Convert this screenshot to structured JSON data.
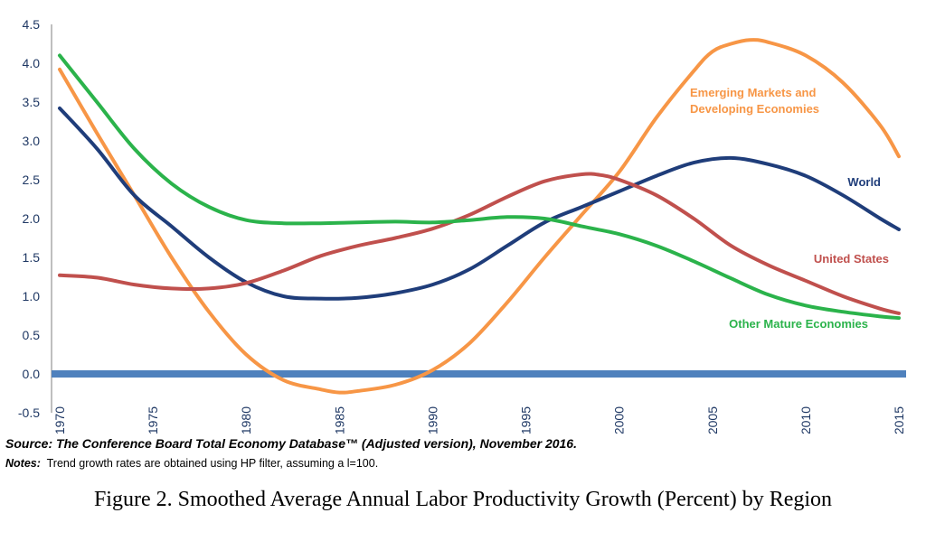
{
  "chart_data": {
    "type": "line",
    "ylim": [
      -0.5,
      4.5
    ],
    "y_ticks": [
      "-0.5",
      "0.0",
      "0.5",
      "1.0",
      "1.5",
      "2.0",
      "2.5",
      "3.0",
      "3.5",
      "4.0",
      "4.5"
    ],
    "x_ticks": [
      "1970",
      "1975",
      "1980",
      "1985",
      "1990",
      "1995",
      "2000",
      "2005",
      "2010",
      "2015"
    ],
    "xlim": [
      1970,
      2015
    ],
    "grid": false,
    "zero_line_color": "#4f81bd",
    "series": [
      {
        "name": "Emerging Markets and Developing Economies",
        "label_lines": [
          "Emerging Markets and",
          "Developing Economies"
        ],
        "color": "#f79646",
        "x": [
          1970,
          1972,
          1974,
          1976,
          1978,
          1980,
          1982,
          1984,
          1985,
          1986,
          1988,
          1990,
          1992,
          1994,
          1996,
          1998,
          2000,
          2002,
          2004,
          2005,
          2006,
          2007,
          2008,
          2010,
          2012,
          2014,
          2015
        ],
        "y": [
          3.92,
          3.1,
          2.3,
          1.5,
          0.8,
          0.25,
          -0.08,
          -0.2,
          -0.24,
          -0.22,
          -0.14,
          0.05,
          0.4,
          0.92,
          1.5,
          2.05,
          2.6,
          3.3,
          3.9,
          4.15,
          4.25,
          4.3,
          4.27,
          4.1,
          3.75,
          3.2,
          2.8
        ]
      },
      {
        "name": "World",
        "label_lines": [
          "World"
        ],
        "color": "#1f3d7a",
        "x": [
          1970,
          1972,
          1974,
          1976,
          1978,
          1980,
          1982,
          1984,
          1986,
          1988,
          1990,
          1992,
          1994,
          1996,
          1998,
          2000,
          2002,
          2004,
          2006,
          2008,
          2010,
          2012,
          2014,
          2015
        ],
        "y": [
          3.42,
          2.9,
          2.3,
          1.9,
          1.5,
          1.18,
          1.0,
          0.97,
          0.98,
          1.04,
          1.15,
          1.35,
          1.65,
          1.95,
          2.15,
          2.35,
          2.55,
          2.72,
          2.78,
          2.7,
          2.55,
          2.3,
          2.0,
          1.86
        ]
      },
      {
        "name": "United States",
        "label_lines": [
          "United States"
        ],
        "color": "#c0504d",
        "x": [
          1970,
          1972,
          1974,
          1976,
          1978,
          1980,
          1982,
          1984,
          1986,
          1988,
          1990,
          1992,
          1994,
          1996,
          1998,
          1999,
          2000,
          2002,
          2004,
          2006,
          2008,
          2010,
          2012,
          2014,
          2015
        ],
        "y": [
          1.27,
          1.24,
          1.15,
          1.1,
          1.1,
          1.17,
          1.33,
          1.52,
          1.65,
          1.75,
          1.87,
          2.05,
          2.28,
          2.48,
          2.57,
          2.56,
          2.5,
          2.3,
          2.0,
          1.65,
          1.4,
          1.2,
          1.0,
          0.84,
          0.78
        ]
      },
      {
        "name": "Other Mature Economies",
        "label_lines": [
          "Other Mature Economies"
        ],
        "color": "#2bb34b",
        "x": [
          1970,
          1972,
          1974,
          1976,
          1978,
          1980,
          1982,
          1984,
          1986,
          1988,
          1990,
          1992,
          1994,
          1996,
          1998,
          2000,
          2002,
          2004,
          2006,
          2008,
          2010,
          2012,
          2014,
          2015
        ],
        "y": [
          4.1,
          3.5,
          2.9,
          2.45,
          2.15,
          1.98,
          1.94,
          1.94,
          1.95,
          1.96,
          1.95,
          1.98,
          2.02,
          2.0,
          1.9,
          1.8,
          1.65,
          1.45,
          1.23,
          1.02,
          0.88,
          0.8,
          0.74,
          0.72
        ]
      }
    ]
  },
  "source_text": "Source: The Conference Board Total Economy Database™ (Adjusted version), November 2016.",
  "notes_label": "Notes:",
  "notes_text": "Trend growth rates are obtained using HP filter, assuming a l=100.",
  "figure_caption": "Figure 2. Smoothed Average Annual Labor Productivity Growth (Percent) by Region"
}
